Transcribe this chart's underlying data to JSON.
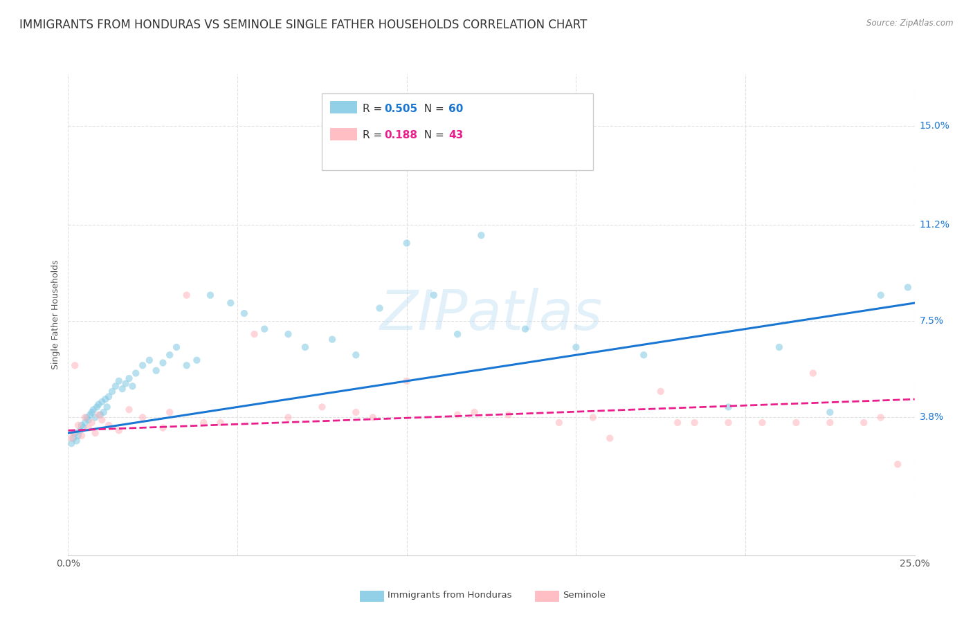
{
  "title": "IMMIGRANTS FROM HONDURAS VS SEMINOLE SINGLE FATHER HOUSEHOLDS CORRELATION CHART",
  "source": "Source: ZipAtlas.com",
  "ylabel": "Single Father Households",
  "yticks": [
    3.8,
    7.5,
    11.2,
    15.0
  ],
  "ytick_labels": [
    "3.8%",
    "7.5%",
    "11.2%",
    "15.0%"
  ],
  "xlim": [
    0.0,
    25.0
  ],
  "ylim": [
    -1.5,
    17.0
  ],
  "blue_scatter_x": [
    0.1,
    0.15,
    0.2,
    0.25,
    0.3,
    0.35,
    0.4,
    0.45,
    0.5,
    0.55,
    0.6,
    0.65,
    0.7,
    0.75,
    0.8,
    0.85,
    0.9,
    0.95,
    1.0,
    1.05,
    1.1,
    1.15,
    1.2,
    1.3,
    1.4,
    1.5,
    1.6,
    1.7,
    1.8,
    1.9,
    2.0,
    2.2,
    2.4,
    2.6,
    2.8,
    3.0,
    3.2,
    3.5,
    3.8,
    4.2,
    4.8,
    5.2,
    5.8,
    6.5,
    7.0,
    7.8,
    8.5,
    9.2,
    10.0,
    10.8,
    11.5,
    12.2,
    13.5,
    15.0,
    17.0,
    19.5,
    21.0,
    22.5,
    24.0,
    24.8
  ],
  "blue_scatter_y": [
    2.8,
    3.0,
    3.2,
    2.9,
    3.1,
    3.3,
    3.5,
    3.4,
    3.6,
    3.8,
    3.7,
    3.9,
    4.0,
    4.1,
    3.8,
    4.2,
    4.3,
    3.9,
    4.4,
    4.0,
    4.5,
    4.2,
    4.6,
    4.8,
    5.0,
    5.2,
    4.9,
    5.1,
    5.3,
    5.0,
    5.5,
    5.8,
    6.0,
    5.6,
    5.9,
    6.2,
    6.5,
    5.8,
    6.0,
    8.5,
    8.2,
    7.8,
    7.2,
    7.0,
    6.5,
    6.8,
    6.2,
    8.0,
    10.5,
    8.5,
    7.0,
    10.8,
    7.2,
    6.5,
    6.2,
    4.2,
    6.5,
    4.0,
    8.5,
    8.8
  ],
  "pink_scatter_x": [
    0.1,
    0.15,
    0.2,
    0.3,
    0.4,
    0.5,
    0.6,
    0.7,
    0.8,
    0.9,
    1.0,
    1.2,
    1.5,
    1.8,
    2.2,
    2.8,
    3.5,
    4.5,
    5.5,
    6.5,
    7.5,
    8.5,
    10.0,
    11.5,
    13.0,
    14.5,
    16.0,
    17.5,
    18.5,
    19.5,
    20.5,
    21.5,
    22.5,
    23.5,
    24.0,
    24.5,
    3.0,
    4.0,
    9.0,
    12.0,
    15.5,
    18.0,
    22.0
  ],
  "pink_scatter_y": [
    3.0,
    3.2,
    5.8,
    3.5,
    3.1,
    3.8,
    3.4,
    3.6,
    3.2,
    3.9,
    3.7,
    3.5,
    3.3,
    4.1,
    3.8,
    3.4,
    8.5,
    3.6,
    7.0,
    3.8,
    4.2,
    4.0,
    5.2,
    3.9,
    3.9,
    3.6,
    3.0,
    4.8,
    3.6,
    3.6,
    3.6,
    3.6,
    3.6,
    3.6,
    3.8,
    2.0,
    4.0,
    3.6,
    3.8,
    4.0,
    3.8,
    3.6,
    5.5
  ],
  "blue_line_x": [
    0.0,
    25.0
  ],
  "blue_line_y_start": 3.2,
  "blue_line_y_end": 8.2,
  "pink_line_x": [
    0.0,
    25.0
  ],
  "pink_line_y_start": 3.3,
  "pink_line_y_end": 4.5,
  "watermark": "ZIPatlas",
  "background_color": "#ffffff",
  "scatter_alpha": 0.55,
  "scatter_size": 55,
  "blue_color": "#7ec8e3",
  "pink_color": "#ffb3ba",
  "blue_line_color": "#1976D2",
  "pink_line_color": "#e91e8c",
  "grid_color": "#e0e0e0",
  "title_fontsize": 12,
  "axis_label_fontsize": 9,
  "tick_fontsize": 10,
  "legend_R1": "0.505",
  "legend_N1": "60",
  "legend_R2": "0.188",
  "legend_N2": "43",
  "legend_label1": "Immigrants from Honduras",
  "legend_label2": "Seminole"
}
